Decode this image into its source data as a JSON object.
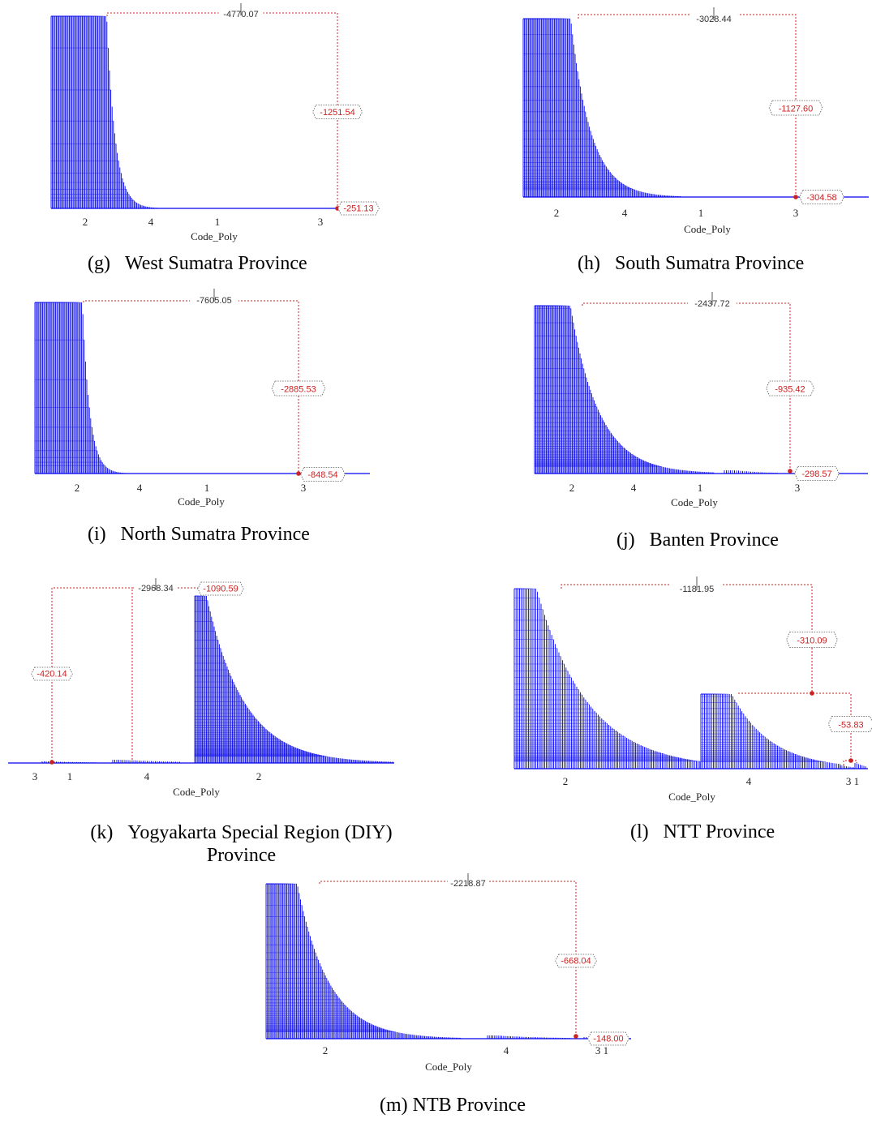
{
  "colors": {
    "bars": "#0000ee",
    "link": "#cc2222",
    "text_dark": "#333333"
  },
  "x_axis_title": "Code_Poly",
  "chart_data": [
    {
      "id": "g",
      "type": "dendrogram",
      "caption_label": "(g)",
      "caption_text": "West Sumatra Province",
      "categories": [
        "2",
        "4",
        "1",
        "3"
      ],
      "xlabel": "Code_Poly",
      "merge_values": [
        "-4770.07",
        "-1251.54",
        "-251.13"
      ]
    },
    {
      "id": "h",
      "type": "dendrogram",
      "caption_label": "(h)",
      "caption_text": "South Sumatra Province",
      "categories": [
        "2",
        "4",
        "1",
        "3"
      ],
      "xlabel": "Code_Poly",
      "merge_values": [
        "-3028.44",
        "-1127.60",
        "-304.58"
      ]
    },
    {
      "id": "i",
      "type": "dendrogram",
      "caption_label": "(i)",
      "caption_text": "North Sumatra Province",
      "categories": [
        "2",
        "4",
        "1",
        "3"
      ],
      "xlabel": "Code_Poly",
      "merge_values": [
        "-7605.05",
        "-2885.53",
        "-848.54"
      ]
    },
    {
      "id": "j",
      "type": "dendrogram",
      "caption_label": "(j)",
      "caption_text": "Banten Province",
      "categories": [
        "2",
        "4",
        "1",
        "3"
      ],
      "xlabel": "Code_Poly",
      "merge_values": [
        "-2437.72",
        "-935.42",
        "-298.57"
      ]
    },
    {
      "id": "k",
      "type": "dendrogram",
      "caption_label": "(k)",
      "caption_text": "Yogyakarta Special Region (DIY)",
      "caption_text2": "Province",
      "categories": [
        "3",
        "1",
        "4",
        "2"
      ],
      "xlabel": "Code_Poly",
      "merge_values": [
        "-2968.34",
        "-1090.59",
        "-420.14"
      ]
    },
    {
      "id": "l",
      "type": "dendrogram",
      "caption_label": "(l)",
      "caption_text": "NTT Province",
      "categories": [
        "2",
        "4",
        "3 1"
      ],
      "xlabel": "Code_Poly",
      "merge_values": [
        "-1181.95",
        "-310.09",
        "-53.83"
      ]
    },
    {
      "id": "m",
      "type": "dendrogram",
      "caption_label": "(m)",
      "caption_text": "NTB Province",
      "categories": [
        "2",
        "4",
        "3 1"
      ],
      "xlabel": "Code_Poly",
      "merge_values": [
        "-2218.87",
        "-668.04",
        "-148.00"
      ]
    }
  ]
}
